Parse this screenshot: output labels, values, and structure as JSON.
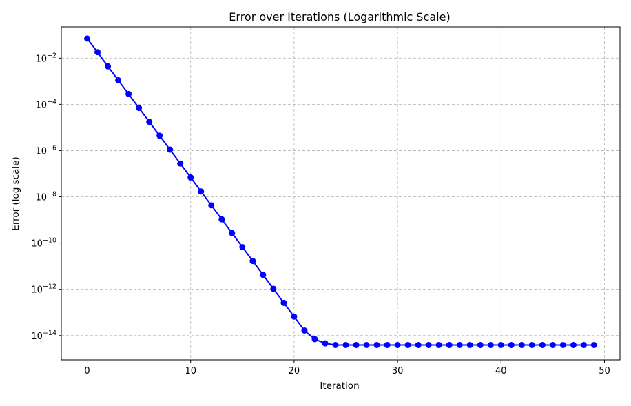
{
  "chart_data": {
    "type": "line",
    "title": "Error over Iterations (Logarithmic Scale)",
    "xlabel": "Iteration",
    "ylabel": "Error (log scale)",
    "yscale": "log",
    "xlim": [
      -2.5,
      51.5
    ],
    "ylim_log10": [
      -15.05,
      -0.65
    ],
    "grid": true,
    "colors": {
      "series": "#0000ff"
    },
    "x_ticks": [
      0,
      10,
      20,
      30,
      40,
      50
    ],
    "y_ticks": [
      {
        "exp": -2,
        "base": "10",
        "exponent": "−2"
      },
      {
        "exp": -4,
        "base": "10",
        "exponent": "−4"
      },
      {
        "exp": -6,
        "base": "10",
        "exponent": "−6"
      },
      {
        "exp": -8,
        "base": "10",
        "exponent": "−8"
      },
      {
        "exp": -10,
        "base": "10",
        "exponent": "−10"
      },
      {
        "exp": -12,
        "base": "10",
        "exponent": "−12"
      },
      {
        "exp": -14,
        "base": "10",
        "exponent": "−14"
      }
    ],
    "series": [
      {
        "x": [
          0,
          1,
          2,
          3,
          4,
          5,
          6,
          7,
          8,
          9,
          10,
          11,
          12,
          13,
          14,
          15,
          16,
          17,
          18,
          19,
          20,
          21,
          22,
          23,
          24,
          25,
          26,
          27,
          28,
          29,
          30,
          31,
          32,
          33,
          34,
          35,
          36,
          37,
          38,
          39,
          40,
          41,
          42,
          43,
          44,
          45,
          46,
          47,
          48,
          49
        ],
        "y": [
          0.07,
          0.018,
          0.0044,
          0.0011,
          0.00028,
          7e-05,
          1.75e-05,
          4.4e-06,
          1.1e-06,
          2.75e-07,
          6.9e-08,
          1.7e-08,
          4.3e-09,
          1.07e-09,
          2.7e-10,
          6.7e-11,
          1.68e-11,
          4.2e-12,
          1.05e-12,
          2.6e-13,
          6.6e-14,
          1.65e-14,
          7e-15,
          4.6e-15,
          3.9e-15,
          3.9e-15,
          3.9e-15,
          3.9e-15,
          3.9e-15,
          3.9e-15,
          3.9e-15,
          3.9e-15,
          3.9e-15,
          3.9e-15,
          3.9e-15,
          3.9e-15,
          3.9e-15,
          3.9e-15,
          3.9e-15,
          3.9e-15,
          3.9e-15,
          3.9e-15,
          3.9e-15,
          3.9e-15,
          3.9e-15,
          3.9e-15,
          3.9e-15,
          3.9e-15,
          3.9e-15,
          3.9e-15
        ]
      }
    ]
  }
}
